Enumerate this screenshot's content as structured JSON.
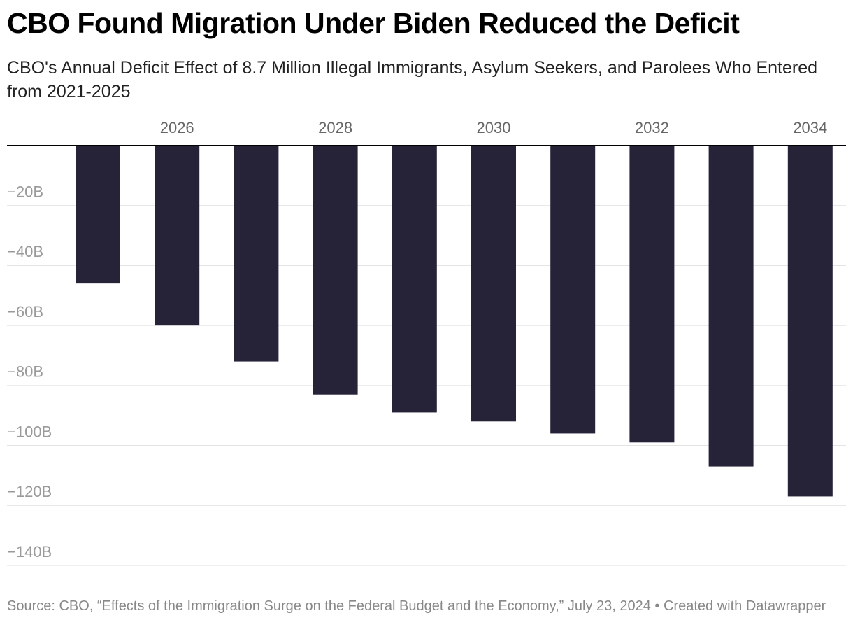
{
  "chart_data": {
    "type": "bar",
    "title": "CBO Found Migration Under Biden Reduced the Deficit",
    "subtitle": "CBO's Annual Deficit Effect of 8.7 Million Illegal Immigrants, Asylum Seekers, and Parolees Who Entered from 2021-2025",
    "source": "Source: CBO, “Effects of the Immigration Surge on the Federal Budget and the Economy,” July 23, 2024 • Created with Datawrapper",
    "categories": [
      null,
      "2026",
      null,
      "2028",
      null,
      "2030",
      null,
      "2032",
      null,
      "2034"
    ],
    "values": [
      -46,
      -60,
      -72,
      -83,
      -89,
      -92,
      -96,
      -99,
      -107,
      -117
    ],
    "color": "#262338",
    "ylim": [
      -140,
      0
    ],
    "yticks": [
      {
        "value": -20,
        "label": "−20B"
      },
      {
        "value": -40,
        "label": "−40B"
      },
      {
        "value": -60,
        "label": "−60B"
      },
      {
        "value": -80,
        "label": "−80B"
      },
      {
        "value": -100,
        "label": "−100B"
      },
      {
        "value": -120,
        "label": "−120B"
      },
      {
        "value": -140,
        "label": "−140B"
      }
    ],
    "grid": true
  }
}
